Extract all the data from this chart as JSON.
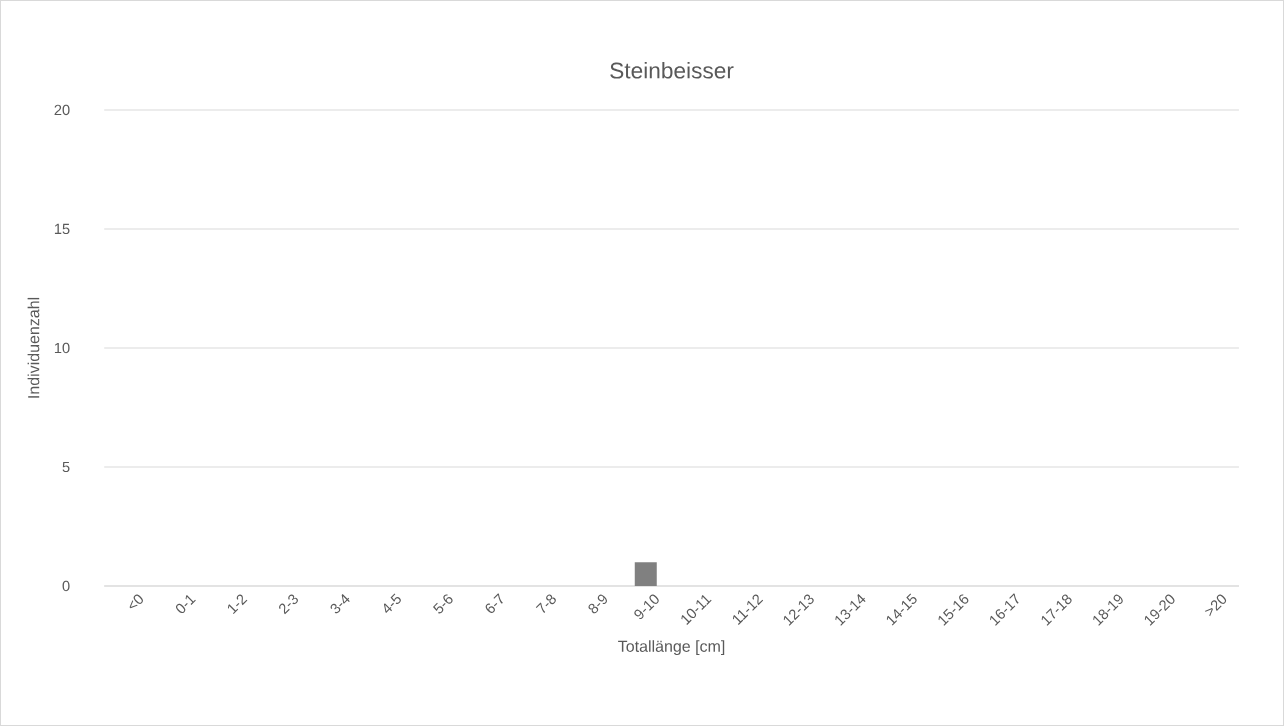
{
  "chart_data": {
    "type": "bar",
    "title": "Steinbeisser",
    "xlabel": "Totallänge [cm]",
    "ylabel": "Individuenzahl",
    "categories": [
      "<0",
      "0-1",
      "1-2",
      "2-3",
      "3-4",
      "4-5",
      "5-6",
      "6-7",
      "7-8",
      "8-9",
      "9-10",
      "10-11",
      "11-12",
      "12-13",
      "13-14",
      "14-15",
      "15-16",
      "16-17",
      "17-18",
      "18-19",
      "19-20",
      ">20"
    ],
    "values": [
      0,
      0,
      0,
      0,
      0,
      0,
      0,
      0,
      0,
      0,
      1,
      0,
      0,
      0,
      0,
      0,
      0,
      0,
      0,
      0,
      0,
      0
    ],
    "color": "#808080",
    "ylim": [
      0,
      20
    ],
    "yticks": [
      0,
      5,
      10,
      15,
      20
    ],
    "grid": "y"
  }
}
